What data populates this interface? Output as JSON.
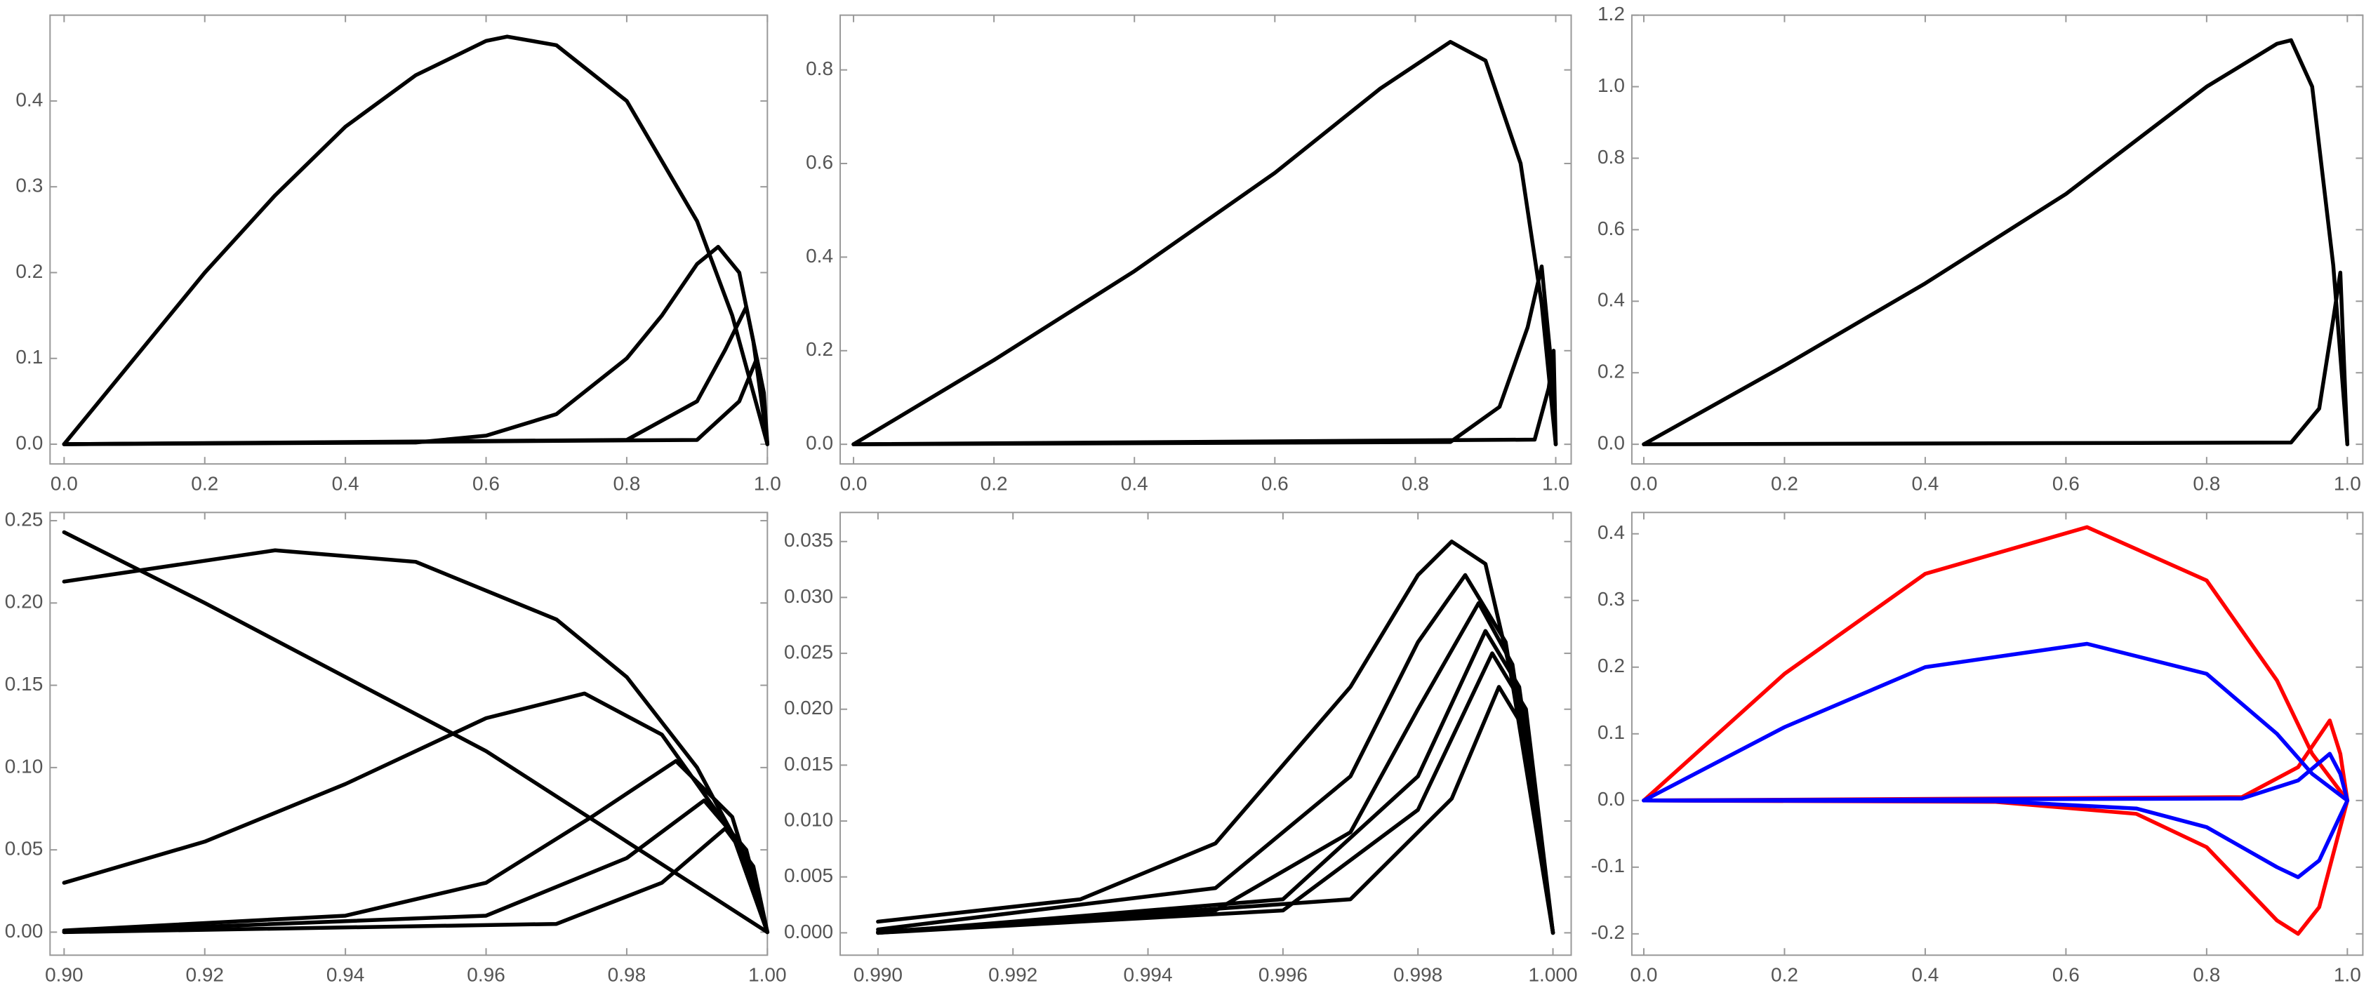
{
  "chart_data": [
    {
      "type": "line",
      "xlim": [
        -0.02,
        1.0
      ],
      "ylim": [
        -0.023,
        0.5
      ],
      "xticks": [
        {
          "value": 0,
          "label": "0.0"
        },
        0.2,
        0.4,
        0.6,
        0.8,
        {
          "value": 1,
          "label": "1.0"
        }
      ],
      "yticks": [
        {
          "value": 0,
          "label": "0.0"
        },
        0.1,
        0.2,
        0.3,
        0.4
      ],
      "series": [
        {
          "color": "#000000",
          "x": [
            0,
            0.1,
            0.2,
            0.3,
            0.4,
            0.5,
            0.6,
            0.63,
            0.7,
            0.8,
            0.9,
            0.95,
            1.0
          ],
          "values": [
            0,
            0.1,
            0.2,
            0.29,
            0.37,
            0.43,
            0.47,
            0.475,
            0.465,
            0.4,
            0.26,
            0.15,
            0
          ]
        },
        {
          "color": "#000000",
          "x": [
            0,
            0.5,
            0.6,
            0.7,
            0.8,
            0.85,
            0.9,
            0.93,
            0.96,
            0.98,
            1.0
          ],
          "values": [
            0,
            0.002,
            0.01,
            0.035,
            0.1,
            0.15,
            0.21,
            0.23,
            0.2,
            0.12,
            0
          ]
        },
        {
          "color": "#000000",
          "x": [
            0,
            0.8,
            0.9,
            0.94,
            0.97,
            0.99,
            1.0
          ],
          "values": [
            0,
            0.005,
            0.05,
            0.11,
            0.16,
            0.08,
            0
          ]
        },
        {
          "color": "#000000",
          "x": [
            0,
            0.9,
            0.96,
            0.985,
            0.995,
            1.0
          ],
          "values": [
            0,
            0.005,
            0.05,
            0.1,
            0.06,
            0
          ]
        }
      ]
    },
    {
      "type": "line",
      "xlim": [
        -0.019,
        1.022
      ],
      "ylim": [
        -0.042,
        0.917
      ],
      "xticks": [
        {
          "value": 0,
          "label": "0.0"
        },
        0.2,
        0.4,
        0.6,
        0.8,
        {
          "value": 1,
          "label": "1.0"
        }
      ],
      "yticks": [
        {
          "value": 0,
          "label": "0.0"
        },
        0.2,
        0.4,
        0.6,
        0.8
      ],
      "series": [
        {
          "color": "#000000",
          "x": [
            0,
            0.2,
            0.4,
            0.6,
            0.75,
            0.85,
            0.9,
            0.95,
            0.98,
            1.0
          ],
          "values": [
            0,
            0.18,
            0.37,
            0.58,
            0.76,
            0.86,
            0.82,
            0.6,
            0.3,
            0
          ]
        },
        {
          "color": "#000000",
          "x": [
            0,
            0.85,
            0.92,
            0.96,
            0.98,
            0.995,
            1.0
          ],
          "values": [
            0,
            0.005,
            0.08,
            0.25,
            0.38,
            0.15,
            0
          ]
        },
        {
          "color": "#000000",
          "x": [
            0,
            0.97,
            0.99,
            0.997,
            1.0
          ],
          "values": [
            0,
            0.01,
            0.12,
            0.2,
            0
          ]
        }
      ]
    },
    {
      "type": "line",
      "xlim": [
        -0.017,
        1.022
      ],
      "ylim": [
        -0.055,
        1.2
      ],
      "xticks": [
        {
          "value": 0,
          "label": "0.0"
        },
        0.2,
        0.4,
        0.6,
        0.8,
        {
          "value": 1,
          "label": "1.0"
        }
      ],
      "yticks": [
        {
          "value": 0,
          "label": "0.0"
        },
        0.2,
        0.4,
        0.6,
        0.8,
        {
          "value": 1,
          "label": "1.0"
        },
        1.2
      ],
      "series": [
        {
          "color": "#000000",
          "x": [
            0,
            0.2,
            0.4,
            0.6,
            0.8,
            0.9,
            0.92,
            0.95,
            0.98,
            1.0
          ],
          "values": [
            0,
            0.22,
            0.45,
            0.7,
            1.0,
            1.12,
            1.13,
            1.0,
            0.5,
            0
          ]
        },
        {
          "color": "#000000",
          "x": [
            0,
            0.92,
            0.96,
            0.98,
            0.99,
            1.0
          ],
          "values": [
            0,
            0.005,
            0.1,
            0.35,
            0.48,
            0
          ]
        }
      ]
    },
    {
      "type": "line",
      "xlim": [
        0.898,
        1.0
      ],
      "ylim": [
        -0.014,
        0.255
      ],
      "xticks": [
        {
          "value": 0.9,
          "label": "0.90"
        },
        0.92,
        0.94,
        0.96,
        0.98,
        {
          "value": 1,
          "label": "1.00"
        }
      ],
      "yticks": [
        {
          "value": 0,
          "label": "0.00"
        },
        0.05,
        {
          "value": 0.1,
          "label": "0.10"
        },
        0.15,
        {
          "value": 0.2,
          "label": "0.20"
        },
        0.25
      ],
      "series": [
        {
          "color": "#000000",
          "x": [
            0.9,
            0.92,
            0.94,
            0.96,
            0.98,
            1.0
          ],
          "values": [
            0.243,
            0.2,
            0.155,
            0.11,
            0.055,
            0
          ]
        },
        {
          "color": "#000000",
          "x": [
            0.9,
            0.93,
            0.95,
            0.97,
            0.98,
            0.99,
            0.995,
            1.0
          ],
          "values": [
            0.213,
            0.232,
            0.225,
            0.19,
            0.155,
            0.1,
            0.06,
            0
          ]
        },
        {
          "color": "#000000",
          "x": [
            0.9,
            0.92,
            0.94,
            0.96,
            0.974,
            0.985,
            0.995,
            1.0
          ],
          "values": [
            0.03,
            0.055,
            0.09,
            0.13,
            0.145,
            0.12,
            0.06,
            0
          ]
        },
        {
          "color": "#000000",
          "x": [
            0.9,
            0.94,
            0.96,
            0.975,
            0.987,
            0.995,
            1.0
          ],
          "values": [
            0.001,
            0.01,
            0.03,
            0.07,
            0.104,
            0.07,
            0
          ]
        },
        {
          "color": "#000000",
          "x": [
            0.9,
            0.96,
            0.98,
            0.991,
            0.997,
            1.0
          ],
          "values": [
            0,
            0.01,
            0.045,
            0.08,
            0.05,
            0
          ]
        },
        {
          "color": "#000000",
          "x": [
            0.9,
            0.97,
            0.985,
            0.994,
            0.998,
            1.0
          ],
          "values": [
            0,
            0.005,
            0.03,
            0.063,
            0.04,
            0
          ]
        }
      ]
    },
    {
      "type": "line",
      "xlim": [
        0.98944,
        1.00027
      ],
      "ylim": [
        -0.002,
        0.0376
      ],
      "xticks": [
        {
          "value": 0.99,
          "label": "0.990"
        },
        0.992,
        0.994,
        0.996,
        0.998,
        {
          "value": 1,
          "label": "1.000"
        }
      ],
      "yticks": [
        {
          "value": 0,
          "label": "0.000"
        },
        0.005,
        {
          "value": 0.01,
          "label": "0.010"
        },
        0.015,
        {
          "value": 0.02,
          "label": "0.020"
        },
        0.025,
        {
          "value": 0.03,
          "label": "0.030"
        },
        0.035
      ],
      "series": [
        {
          "color": "#000000",
          "x": [
            0.99,
            0.993,
            0.995,
            0.997,
            0.998,
            0.9985,
            0.999,
            0.9995,
            1.0
          ],
          "values": [
            0.001,
            0.003,
            0.008,
            0.022,
            0.032,
            0.035,
            0.033,
            0.02,
            0
          ]
        },
        {
          "color": "#000000",
          "x": [
            0.99,
            0.995,
            0.997,
            0.998,
            0.9987,
            0.9993,
            1.0
          ],
          "values": [
            0.0003,
            0.004,
            0.014,
            0.026,
            0.032,
            0.026,
            0
          ]
        },
        {
          "color": "#000000",
          "x": [
            0.99,
            0.995,
            0.997,
            0.998,
            0.9989,
            0.9994,
            1.0
          ],
          "values": [
            0.0001,
            0.002,
            0.009,
            0.02,
            0.0295,
            0.024,
            0
          ]
        },
        {
          "color": "#000000",
          "x": [
            0.99,
            0.996,
            0.998,
            0.999,
            0.9995,
            1.0
          ],
          "values": [
            0,
            0.003,
            0.014,
            0.027,
            0.022,
            0
          ]
        },
        {
          "color": "#000000",
          "x": [
            0.99,
            0.996,
            0.998,
            0.9991,
            0.9996,
            1.0
          ],
          "values": [
            0,
            0.002,
            0.011,
            0.025,
            0.02,
            0
          ]
        },
        {
          "color": "#000000",
          "x": [
            0.99,
            0.997,
            0.9985,
            0.9992,
            0.9996,
            1.0
          ],
          "values": [
            0,
            0.003,
            0.012,
            0.022,
            0.018,
            0
          ]
        }
      ]
    },
    {
      "type": "line",
      "xlim": [
        -0.017,
        1.022
      ],
      "ylim": [
        -0.232,
        0.432
      ],
      "xticks": [
        {
          "value": 0,
          "label": "0.0"
        },
        0.2,
        0.4,
        0.6,
        0.8,
        {
          "value": 1,
          "label": "1.0"
        }
      ],
      "yticks": [
        -0.2,
        -0.1,
        {
          "value": 0,
          "label": "0.0"
        },
        0.1,
        0.2,
        0.3,
        0.4
      ],
      "series": [
        {
          "color": "#ff0000",
          "x": [
            0,
            0.2,
            0.4,
            0.63,
            0.8,
            0.9,
            0.95,
            1.0
          ],
          "values": [
            0,
            0.19,
            0.34,
            0.41,
            0.33,
            0.18,
            0.07,
            0
          ]
        },
        {
          "color": "#ff0000",
          "x": [
            0,
            0.5,
            0.7,
            0.8,
            0.9,
            0.93,
            0.96,
            0.98,
            1.0
          ],
          "values": [
            0,
            -0.002,
            -0.02,
            -0.07,
            -0.18,
            -0.2,
            -0.16,
            -0.08,
            0
          ]
        },
        {
          "color": "#ff0000",
          "x": [
            0,
            0.85,
            0.93,
            0.975,
            0.99,
            1.0
          ],
          "values": [
            0,
            0.005,
            0.05,
            0.12,
            0.07,
            0
          ]
        },
        {
          "color": "#0000ff",
          "x": [
            0,
            0.2,
            0.4,
            0.63,
            0.8,
            0.9,
            0.95,
            1.0
          ],
          "values": [
            0,
            0.11,
            0.2,
            0.235,
            0.19,
            0.1,
            0.04,
            0
          ]
        },
        {
          "color": "#0000ff",
          "x": [
            0,
            0.5,
            0.7,
            0.8,
            0.9,
            0.93,
            0.96,
            0.98,
            1.0
          ],
          "values": [
            0,
            -0.001,
            -0.012,
            -0.04,
            -0.1,
            -0.115,
            -0.09,
            -0.045,
            0
          ]
        },
        {
          "color": "#0000ff",
          "x": [
            0,
            0.85,
            0.93,
            0.975,
            0.99,
            1.0
          ],
          "values": [
            0,
            0.003,
            0.03,
            0.07,
            0.04,
            0
          ]
        }
      ]
    }
  ]
}
